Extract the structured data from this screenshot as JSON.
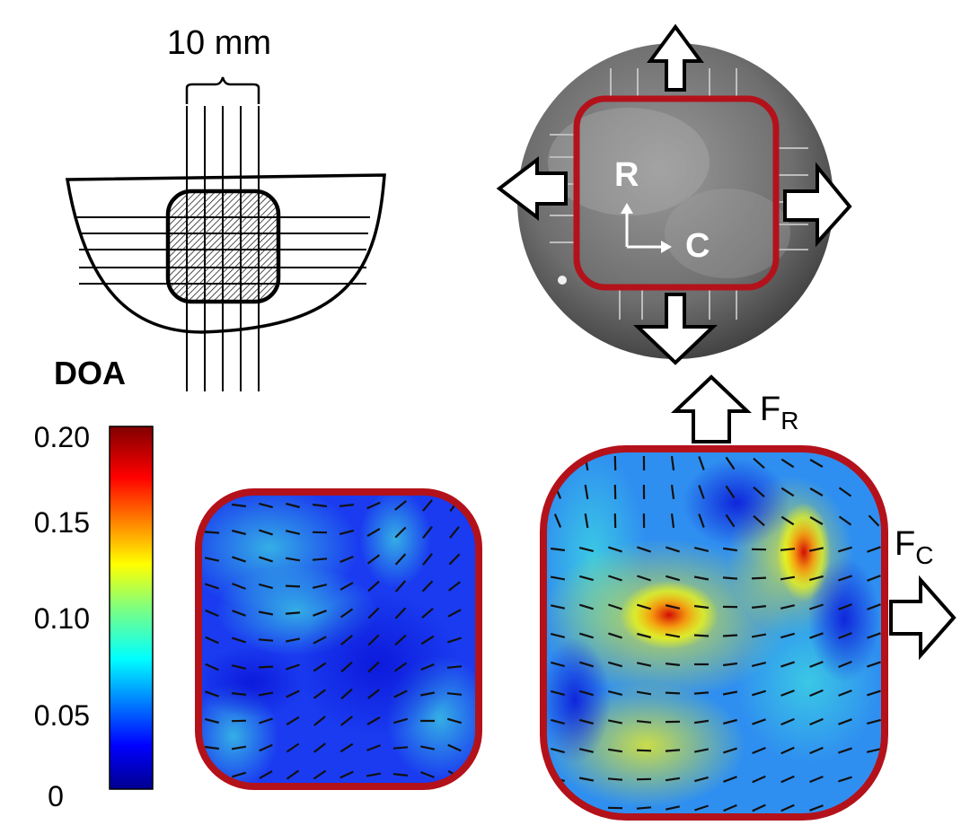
{
  "scale_label": "10 mm",
  "colorbar": {
    "title": "DOA",
    "ticks": [
      "0.20",
      "0.15",
      "0.10",
      "0.05",
      "0"
    ],
    "range": [
      0,
      0.2
    ]
  },
  "photo_axes": {
    "vertical": "R",
    "horizontal": "C"
  },
  "forces": {
    "radial_main": "F",
    "radial_sub": "R",
    "circ_main": "F",
    "circ_sub": "C"
  },
  "colors": {
    "outline_red": "#b3121b",
    "arrow_stroke": "#000000",
    "axis_white": "#ffffff"
  }
}
